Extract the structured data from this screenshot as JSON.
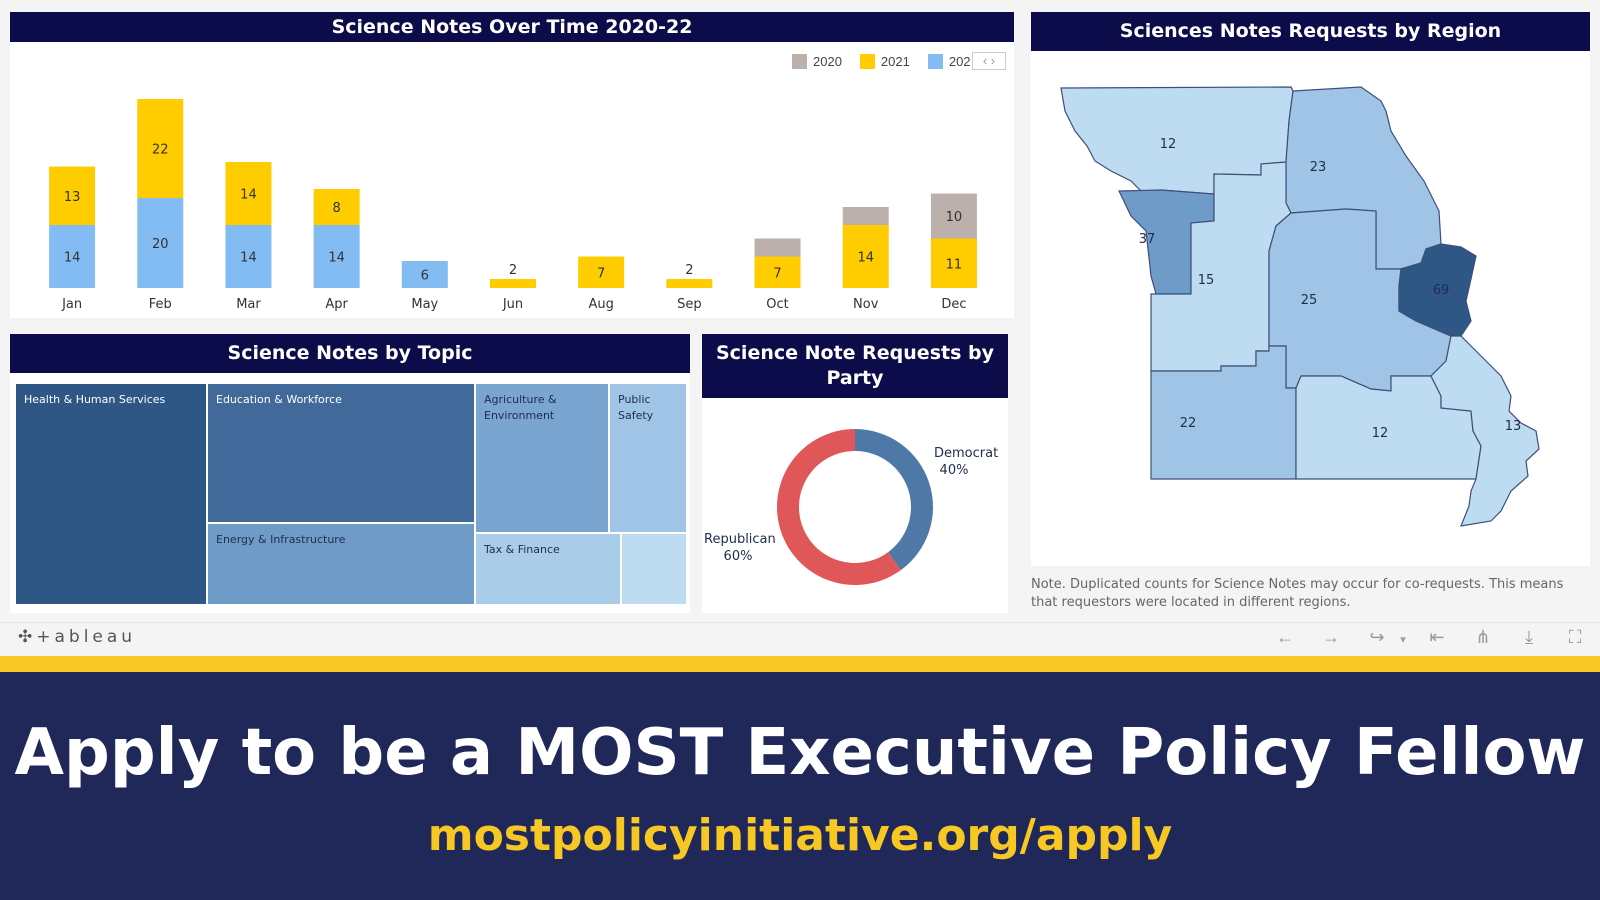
{
  "bar_chart": {
    "title": "Science Notes Over Time 2020-22",
    "legend": [
      {
        "label": "2020",
        "color": "#bbb0ac"
      },
      {
        "label": "2021",
        "color": "#ffcc00"
      },
      {
        "label": "202",
        "color": "#82bcf2"
      }
    ],
    "legend_nav": "‹ ›"
  },
  "chart_data": {
    "type": "bar",
    "stacked": true,
    "categories": [
      "Jan",
      "Feb",
      "Mar",
      "Apr",
      "May",
      "Jun",
      "Aug",
      "Sep",
      "Oct",
      "Nov",
      "Dec"
    ],
    "series": [
      {
        "name": "202",
        "color": "#82bcf2",
        "values": [
          14,
          20,
          14,
          14,
          6,
          0,
          0,
          0,
          0,
          0,
          0
        ]
      },
      {
        "name": "2021",
        "color": "#ffcc00",
        "values": [
          13,
          22,
          14,
          8,
          0,
          2,
          7,
          2,
          7,
          14,
          11
        ]
      },
      {
        "name": "2020",
        "color": "#bbb0ac",
        "values": [
          0,
          0,
          0,
          0,
          0,
          0,
          0,
          0,
          4,
          4,
          10
        ]
      }
    ],
    "labels": {
      "202": [
        "14",
        "20",
        "14",
        "14",
        "6",
        "",
        "",
        "",
        "",
        "",
        ""
      ],
      "2021": [
        "13",
        "22",
        "14",
        "8",
        "",
        "2",
        "7",
        "2",
        "7",
        "14",
        "11"
      ],
      "2020": [
        "",
        "",
        "",
        "",
        "",
        "",
        "",
        "",
        "",
        "",
        "10"
      ]
    },
    "ylim": [
      0,
      45
    ]
  },
  "map": {
    "title": "Sciences Notes Requests by Region",
    "regions": [
      {
        "id": "nw",
        "label": "12",
        "value": 12
      },
      {
        "id": "ne",
        "label": "23",
        "value": 23
      },
      {
        "id": "kc",
        "label": "37",
        "value": 37
      },
      {
        "id": "wc",
        "label": "15",
        "value": 15
      },
      {
        "id": "central",
        "label": "25",
        "value": 25
      },
      {
        "id": "stl",
        "label": "69",
        "value": 69
      },
      {
        "id": "sw",
        "label": "22",
        "value": 22
      },
      {
        "id": "sc",
        "label": "12",
        "value": 12
      },
      {
        "id": "se",
        "label": "13",
        "value": 13
      }
    ],
    "note": "Note. Duplicated counts for Science Notes may occur for co-requests. This means that requestors were located in different regions."
  },
  "topic": {
    "title": "Science Notes by Topic",
    "cells": [
      {
        "label": "Health & Human Services",
        "color": "#2f5785"
      },
      {
        "label": "Education & Workforce",
        "color": "#41699a"
      },
      {
        "label": "Energy & Infrastructure",
        "color": "#6f9bc8"
      },
      {
        "label": "Agriculture & Environment",
        "color": "#7aa5d0"
      },
      {
        "label": "Public Safety",
        "color": "#9fc4e6"
      },
      {
        "label": "Tax & Finance",
        "color": "#a9cde9"
      },
      {
        "label": "",
        "color": "#bddcf2"
      }
    ]
  },
  "party": {
    "title": "Science Note Requests by Party",
    "slices": [
      {
        "label": "Democrat",
        "pct": 40,
        "pct_label": "40%",
        "color": "#4e79a7"
      },
      {
        "label": "Republican",
        "pct": 60,
        "pct_label": "60%",
        "color": "#e05759"
      }
    ]
  },
  "toolbar": {
    "logo": "+ableau",
    "icons": [
      "undo-icon",
      "redo-icon",
      "revert-icon",
      "reset-icon",
      "share-icon",
      "download-icon",
      "fullscreen-icon"
    ]
  },
  "banner": {
    "headline": "Apply to be a MOST Executive Policy Fellow",
    "url": "mostpolicyinitiative.org/apply"
  }
}
